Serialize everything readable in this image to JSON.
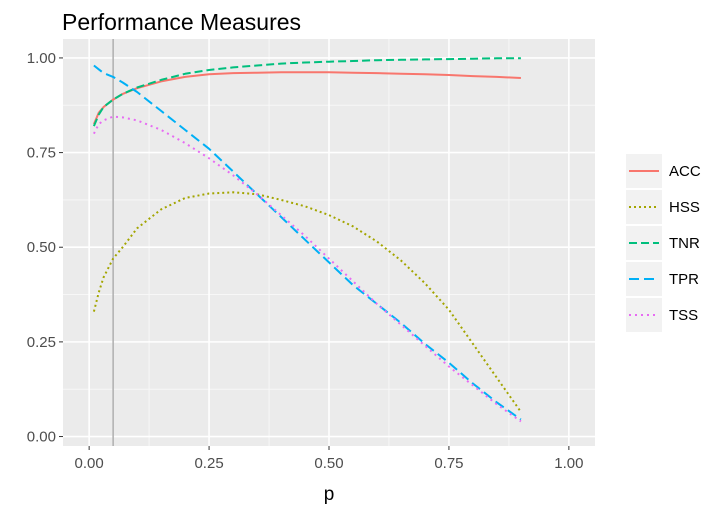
{
  "chart_data": {
    "type": "line",
    "title": "Performance Measures",
    "xlabel": "p",
    "ylabel": "",
    "xlim": [
      -0.0545,
      1.0545
    ],
    "ylim": [
      -0.025,
      1.05
    ],
    "x_ticks": [
      "0.00",
      "0.25",
      "0.50",
      "0.75",
      "1.00"
    ],
    "y_ticks": [
      "0.00",
      "0.25",
      "0.50",
      "0.75",
      "1.00"
    ],
    "vline_x": 0.05,
    "grid": true,
    "legend_position": "right",
    "x": [
      0.01,
      0.02,
      0.03,
      0.05,
      0.07,
      0.1,
      0.15,
      0.2,
      0.25,
      0.3,
      0.35,
      0.4,
      0.45,
      0.5,
      0.55,
      0.6,
      0.65,
      0.7,
      0.75,
      0.8,
      0.85,
      0.9
    ],
    "series": [
      {
        "name": "ACC",
        "color": "#F8766D",
        "dash": "",
        "values": [
          0.825,
          0.855,
          0.87,
          0.89,
          0.905,
          0.92,
          0.938,
          0.95,
          0.957,
          0.96,
          0.961,
          0.962,
          0.962,
          0.962,
          0.961,
          0.96,
          0.958,
          0.957,
          0.955,
          0.952,
          0.95,
          0.947
        ]
      },
      {
        "name": "HSS",
        "color": "#A3A500",
        "dash": "2,3",
        "values": [
          0.33,
          0.38,
          0.42,
          0.47,
          0.5,
          0.55,
          0.6,
          0.63,
          0.642,
          0.645,
          0.64,
          0.625,
          0.608,
          0.585,
          0.555,
          0.515,
          0.465,
          0.405,
          0.335,
          0.245,
          0.155,
          0.065
        ]
      },
      {
        "name": "TNR",
        "color": "#00BF7D",
        "dash": "8,4",
        "values": [
          0.82,
          0.85,
          0.87,
          0.89,
          0.905,
          0.922,
          0.942,
          0.958,
          0.968,
          0.975,
          0.98,
          0.985,
          0.988,
          0.99,
          0.992,
          0.994,
          0.995,
          0.996,
          0.997,
          0.998,
          0.999,
          0.999
        ]
      },
      {
        "name": "TPR",
        "color": "#00B0F6",
        "dash": "10,5",
        "values": [
          0.98,
          0.97,
          0.96,
          0.95,
          0.935,
          0.91,
          0.86,
          0.81,
          0.76,
          0.7,
          0.64,
          0.58,
          0.52,
          0.46,
          0.4,
          0.35,
          0.3,
          0.245,
          0.195,
          0.14,
          0.09,
          0.045
        ]
      },
      {
        "name": "TSS",
        "color": "#E76BF3",
        "dash": "2,4",
        "values": [
          0.8,
          0.825,
          0.835,
          0.845,
          0.843,
          0.835,
          0.81,
          0.775,
          0.735,
          0.69,
          0.64,
          0.585,
          0.53,
          0.47,
          0.41,
          0.35,
          0.295,
          0.24,
          0.185,
          0.135,
          0.085,
          0.04
        ]
      }
    ]
  }
}
